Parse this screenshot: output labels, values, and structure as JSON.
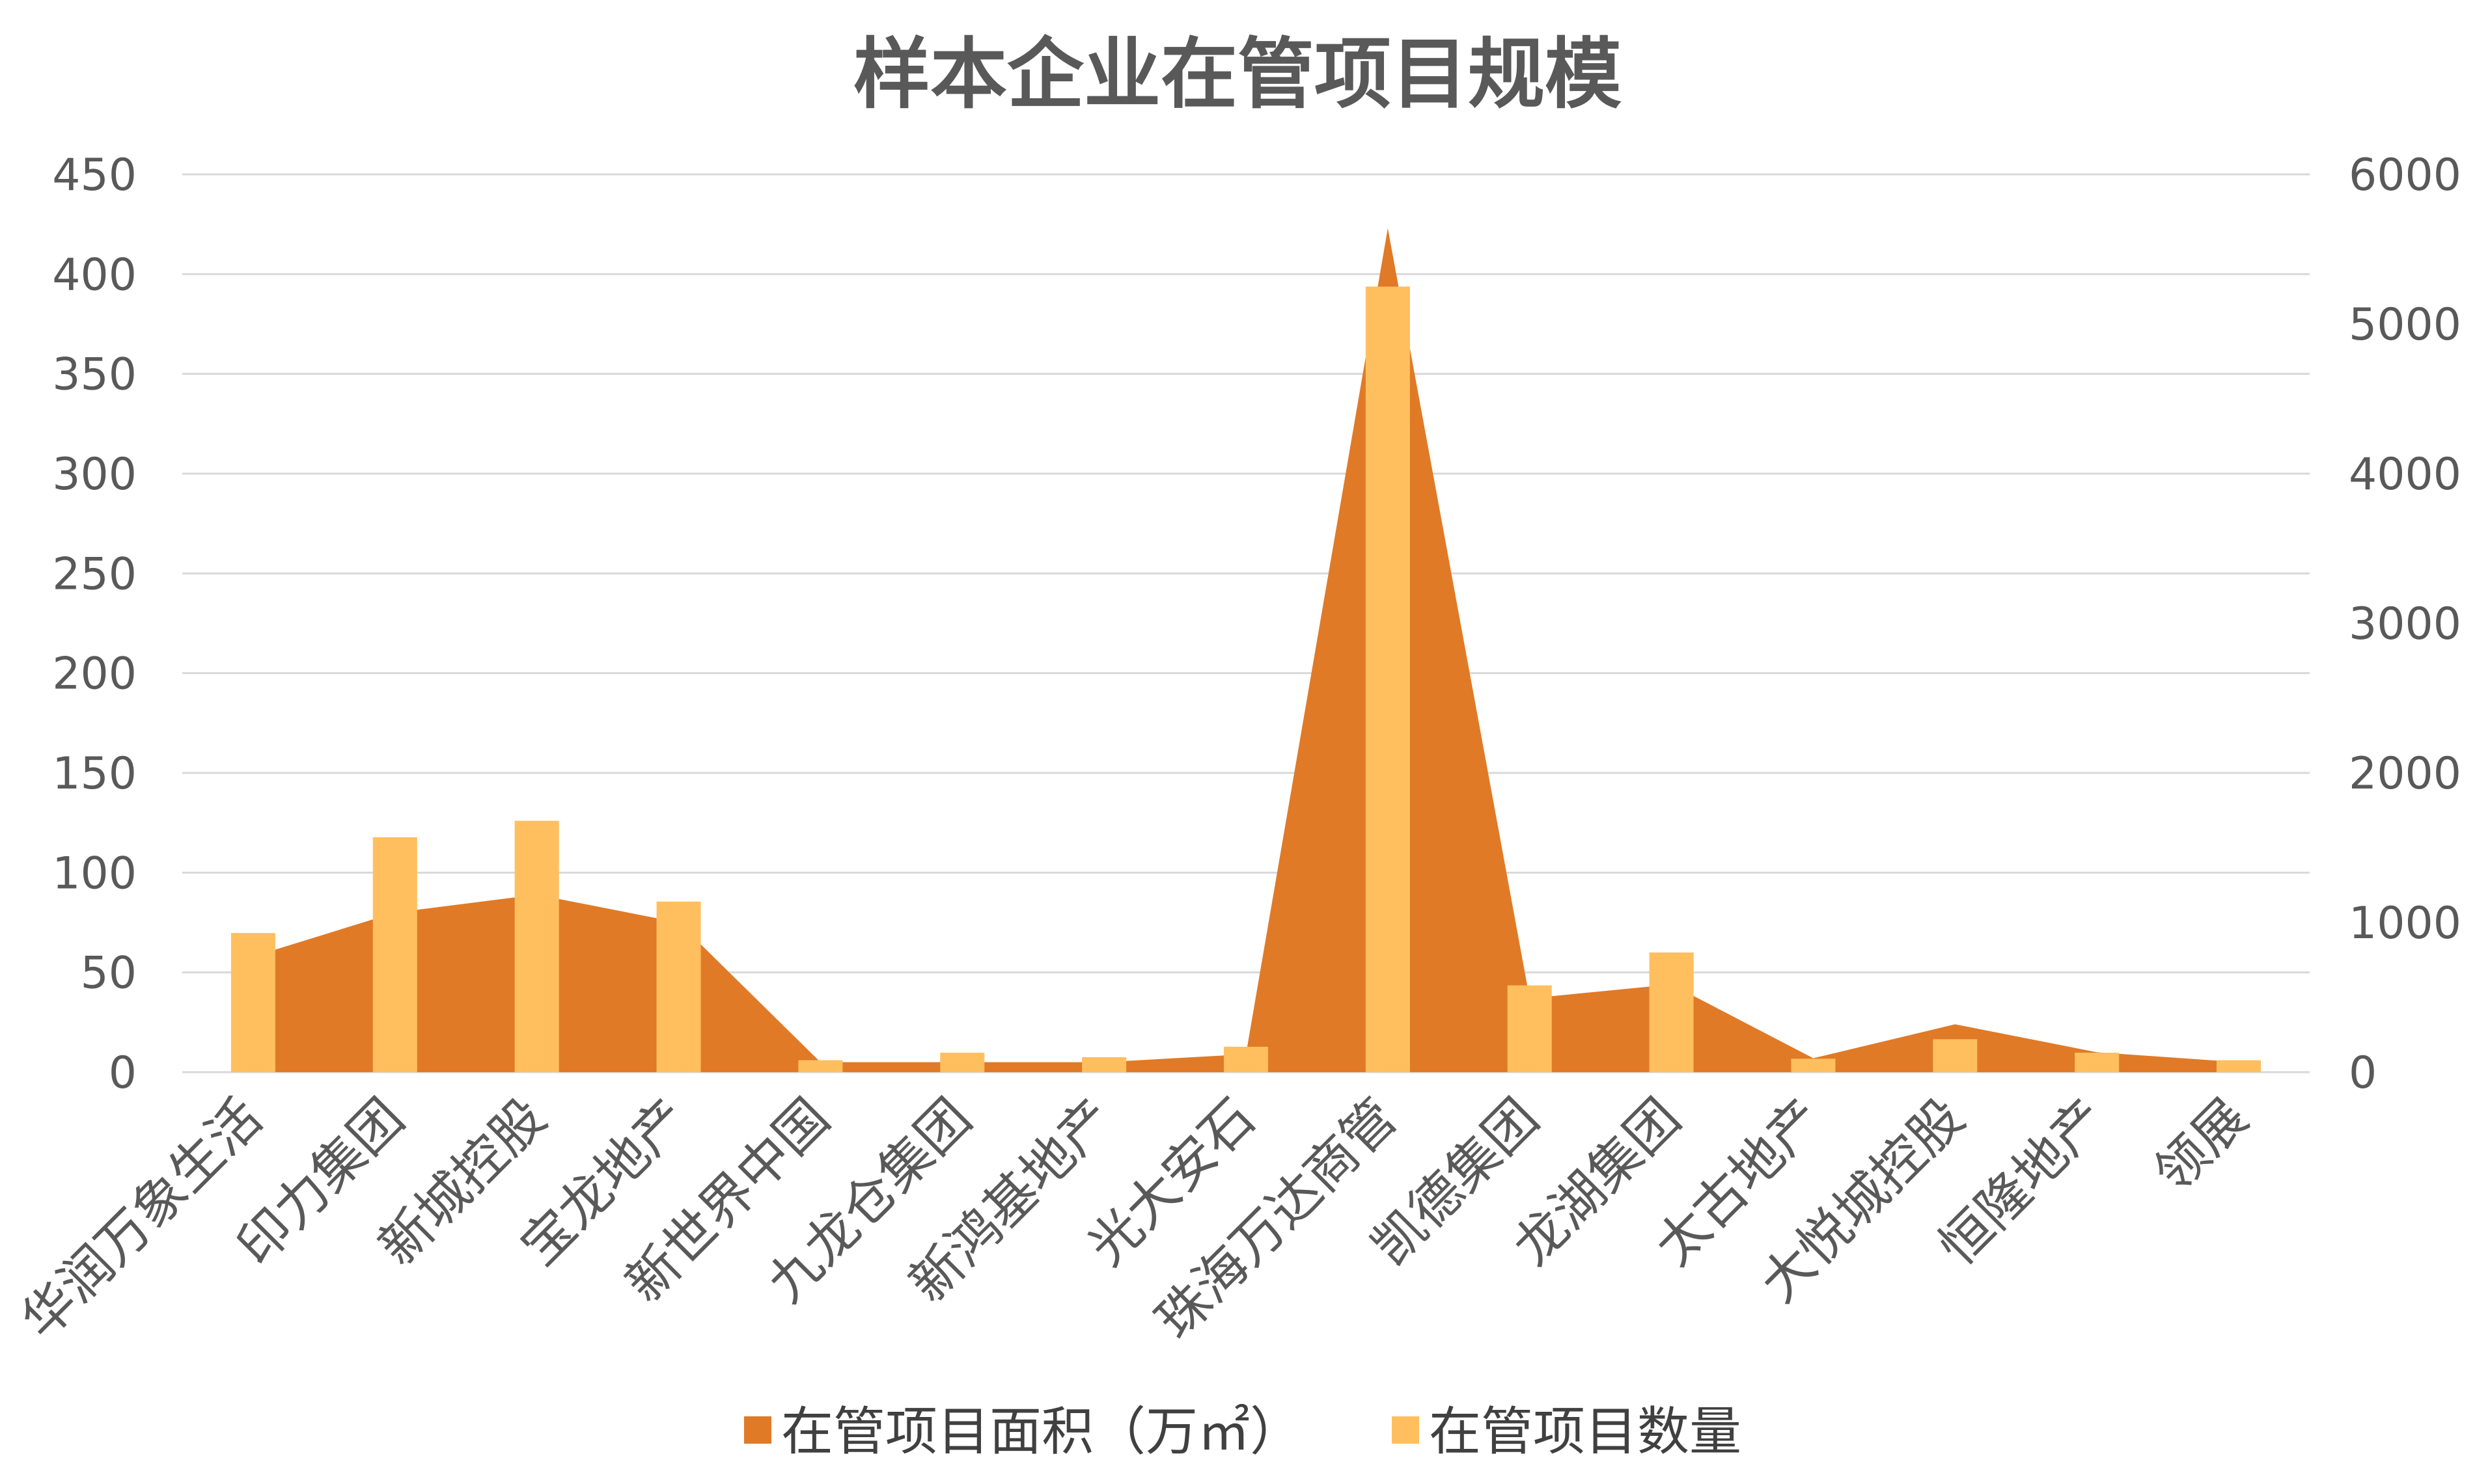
{
  "chart_data": {
    "type": "bar",
    "title": "样本企业在管项目规模",
    "categories": [
      "华润万象生活",
      "印力集团",
      "新城控股",
      "宝龙地产",
      "新世界中国",
      "九龙仓集团",
      "新鸿基地产",
      "光大安石",
      "珠海万达商管",
      "凯德集团",
      "龙湖集团",
      "太古地产",
      "大悦城控股",
      "恒隆地产",
      "领展"
    ],
    "series": [
      {
        "name": "在管项目面积（万㎡）",
        "type": "area",
        "axis": "left",
        "color": "#E07A27",
        "values": [
          58,
          80,
          89,
          75,
          5,
          5,
          5,
          9,
          423,
          37,
          44,
          7,
          24,
          10,
          5
        ]
      },
      {
        "name": "在管项目数量",
        "type": "bar",
        "axis": "right",
        "color": "#FFBF5E",
        "values": [
          930,
          1570,
          1680,
          1140,
          80,
          130,
          100,
          170,
          5250,
          580,
          800,
          90,
          220,
          130,
          80
        ]
      }
    ],
    "y_left": {
      "min": 0,
      "max": 450,
      "ticks": [
        "0",
        "50",
        "100",
        "150",
        "200",
        "250",
        "300",
        "350",
        "400",
        "450"
      ]
    },
    "y_right": {
      "min": 0,
      "max": 6000,
      "ticks": [
        "0",
        "1000",
        "2000",
        "3000",
        "4000",
        "5000",
        "6000"
      ]
    },
    "grid": true,
    "legend_position": "bottom"
  }
}
